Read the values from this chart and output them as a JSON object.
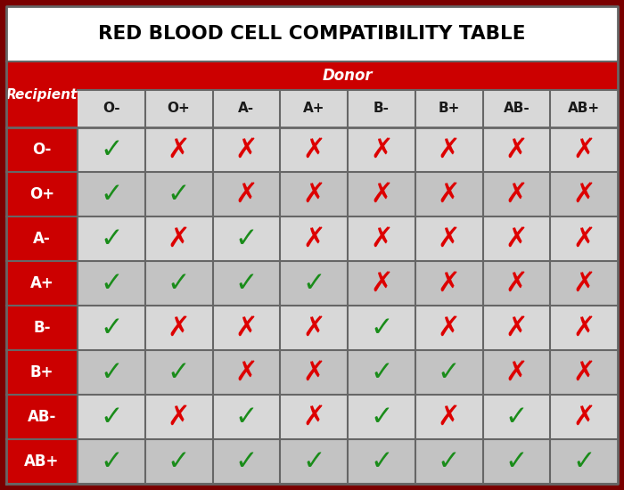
{
  "title": "RED BLOOD CELL COMPATIBILITY TABLE",
  "donor_label": "Donor",
  "recipient_label": "Recipient",
  "blood_types": [
    "O-",
    "O+",
    "A-",
    "A+",
    "B-",
    "B+",
    "AB-",
    "AB+"
  ],
  "compatibility": [
    [
      1,
      0,
      0,
      0,
      0,
      0,
      0,
      0
    ],
    [
      1,
      1,
      0,
      0,
      0,
      0,
      0,
      0
    ],
    [
      1,
      0,
      1,
      0,
      0,
      0,
      0,
      0
    ],
    [
      1,
      1,
      1,
      1,
      0,
      0,
      0,
      0
    ],
    [
      1,
      0,
      0,
      0,
      1,
      0,
      0,
      0
    ],
    [
      1,
      1,
      0,
      0,
      1,
      1,
      0,
      0
    ],
    [
      1,
      0,
      1,
      0,
      1,
      0,
      1,
      0
    ],
    [
      1,
      1,
      1,
      1,
      1,
      1,
      1,
      1
    ]
  ],
  "check_color": "#1a8c1a",
  "cross_color": "#dd0000",
  "header_bg": "#cc0000",
  "header_text": "#ffffff",
  "title_bg": "#ffffff",
  "title_text": "#000000",
  "row_bg_light": "#d8d8d8",
  "row_bg_dark": "#c3c3c3",
  "recipient_col_bg": "#cc0000",
  "recipient_col_text": "#ffffff",
  "col_header_bg": "#d8d8d8",
  "col_header_text": "#1a1a1a",
  "outer_bg": "#7a0000",
  "separator_color": "#8a8a8a",
  "dark_sep_color": "#666666"
}
